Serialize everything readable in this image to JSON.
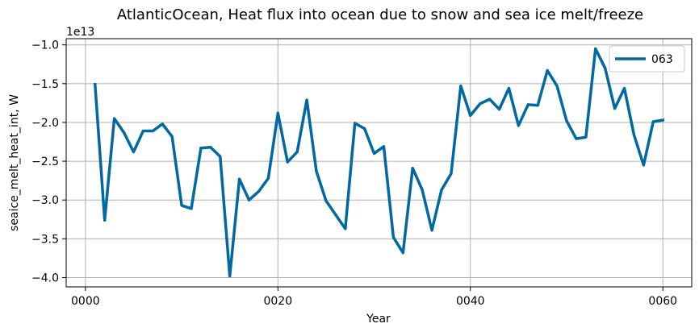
{
  "chart_data": {
    "type": "line",
    "title": "AtlanticOcean, Heat flux into ocean due to snow and sea ice melt/freeze",
    "xlabel": "Year",
    "ylabel": "seaice_melt_heat_int, W",
    "offset_text": "1e13",
    "xlim": [
      -2,
      63
    ],
    "ylim": [
      -4.12,
      -0.92
    ],
    "x_ticks": [
      0,
      20,
      40,
      60
    ],
    "x_tick_labels": [
      "0000",
      "0020",
      "0040",
      "0060"
    ],
    "y_ticks": [
      -4.0,
      -3.5,
      -3.0,
      -2.5,
      -2.0,
      -1.5,
      -1.0
    ],
    "y_tick_labels": [
      "−4.0",
      "−3.5",
      "−3.0",
      "−2.5",
      "−2.0",
      "−1.5",
      "−1.0"
    ],
    "grid": true,
    "legend_position": "top-right",
    "series": [
      {
        "name": "063",
        "color": "#0069a1",
        "x": [
          1,
          2,
          3,
          4,
          5,
          6,
          7,
          8,
          9,
          10,
          11,
          12,
          13,
          14,
          15,
          16,
          17,
          18,
          19,
          20,
          21,
          22,
          23,
          24,
          25,
          26,
          27,
          28,
          29,
          30,
          31,
          32,
          33,
          34,
          35,
          36,
          37,
          38,
          39,
          40,
          41,
          42,
          43,
          44,
          45,
          46,
          47,
          48,
          49,
          50,
          51,
          52,
          53,
          54,
          55,
          56,
          57,
          58,
          59,
          60
        ],
        "values": [
          -1.51,
          -3.26,
          -1.95,
          -2.13,
          -2.38,
          -2.11,
          -2.11,
          -2.02,
          -2.18,
          -3.07,
          -3.11,
          -2.33,
          -2.32,
          -2.44,
          -3.98,
          -2.73,
          -3.0,
          -2.89,
          -2.72,
          -1.88,
          -2.51,
          -2.38,
          -1.71,
          -2.63,
          -3.01,
          -3.19,
          -3.37,
          -2.01,
          -2.08,
          -2.4,
          -2.31,
          -3.48,
          -3.68,
          -2.59,
          -2.87,
          -3.39,
          -2.87,
          -2.66,
          -1.53,
          -1.91,
          -1.76,
          -1.7,
          -1.83,
          -1.56,
          -2.04,
          -1.77,
          -1.78,
          -1.33,
          -1.53,
          -1.98,
          -2.21,
          -2.19,
          -1.05,
          -1.3,
          -1.82,
          -1.56,
          -2.16,
          -2.55,
          -1.99,
          -1.97
        ]
      }
    ]
  }
}
